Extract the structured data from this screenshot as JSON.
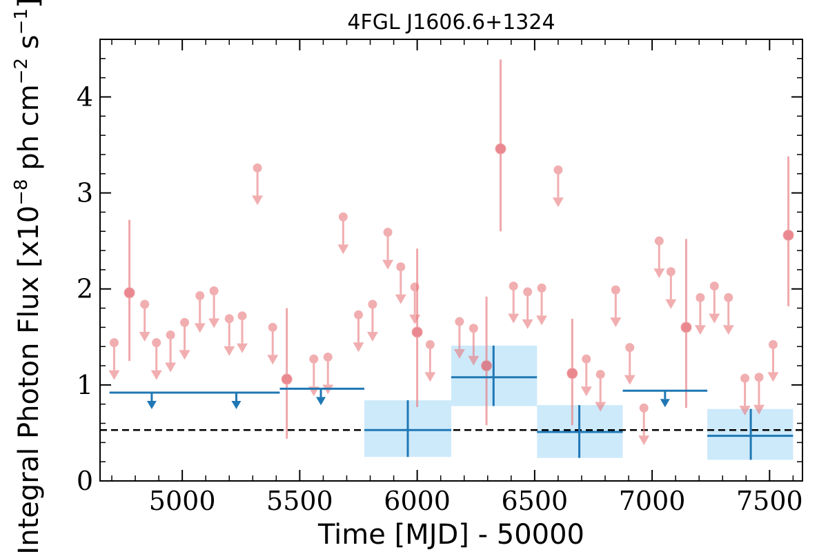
{
  "chart_data": {
    "type": "scatter",
    "title": "4FGL J1606.6+1324",
    "xlabel": "Time [MJD] - 50000",
    "ylabel_parts": [
      "Integral Photon Flux [x10",
      "−8",
      " ph cm",
      "−2",
      " s",
      "−1",
      "]"
    ],
    "xlim": [
      4650,
      7640
    ],
    "ylim": [
      0,
      4.6
    ],
    "xticks": [
      5000,
      5500,
      6000,
      6500,
      7000,
      7500
    ],
    "yticks": [
      0,
      1,
      2,
      3,
      4
    ],
    "reference_line": {
      "y": 0.53,
      "style": "dashed",
      "color": "#000000"
    },
    "colors": {
      "fine_bins": "#e8797d",
      "coarse_bins": "#1f77b4",
      "coarse_band": "#cdeafb"
    },
    "fine_upper_limits": {
      "x": [
        4710,
        4840,
        4890,
        4950,
        5010,
        5075,
        5135,
        5200,
        5255,
        5320,
        5385,
        5560,
        5620,
        5685,
        5750,
        5810,
        5875,
        5930,
        5990,
        6055,
        6180,
        6240,
        6410,
        6470,
        6530,
        6600,
        6720,
        6780,
        6845,
        6905,
        6965,
        7030,
        7080,
        7205,
        7265,
        7325,
        7395,
        7455,
        7515
      ],
      "y": [
        1.44,
        1.84,
        1.44,
        1.52,
        1.65,
        1.93,
        1.98,
        1.69,
        1.72,
        3.26,
        1.6,
        1.27,
        1.29,
        2.75,
        1.73,
        1.84,
        2.59,
        2.23,
        2.02,
        1.42,
        1.66,
        1.59,
        2.03,
        1.97,
        2.01,
        3.24,
        1.27,
        1.11,
        1.99,
        1.39,
        0.76,
        2.5,
        2.18,
        1.91,
        2.03,
        1.91,
        1.07,
        1.08,
        1.42
      ]
    },
    "fine_detections": {
      "x": [
        4775,
        5445,
        6000,
        6295,
        6355,
        6660,
        7145,
        7580
      ],
      "y": [
        1.96,
        1.06,
        1.55,
        1.2,
        3.46,
        1.12,
        1.6,
        2.56
      ],
      "y_low": [
        1.25,
        0.44,
        0.77,
        0.58,
        2.6,
        0.58,
        0.76,
        1.82
      ],
      "y_high": [
        2.72,
        1.8,
        2.42,
        1.92,
        4.39,
        1.69,
        2.52,
        3.38
      ]
    },
    "coarse_upper_limits": {
      "x_start": [
        4690,
        5415,
        6875
      ],
      "x_end": [
        5415,
        5775,
        7235
      ],
      "y": [
        0.92,
        0.96,
        0.94
      ],
      "arrow_x": [
        4870,
        5230,
        5590,
        7055
      ]
    },
    "coarse_detections": {
      "x": [
        5960,
        6325,
        6690,
        7420
      ],
      "x_low": [
        5775,
        6145,
        6510,
        7235
      ],
      "x_high": [
        6145,
        6510,
        6875,
        7600
      ],
      "y": [
        0.53,
        1.08,
        0.51,
        0.47
      ],
      "y_low": [
        0.25,
        0.78,
        0.24,
        0.22
      ],
      "y_high": [
        0.84,
        1.41,
        0.79,
        0.75
      ]
    }
  }
}
